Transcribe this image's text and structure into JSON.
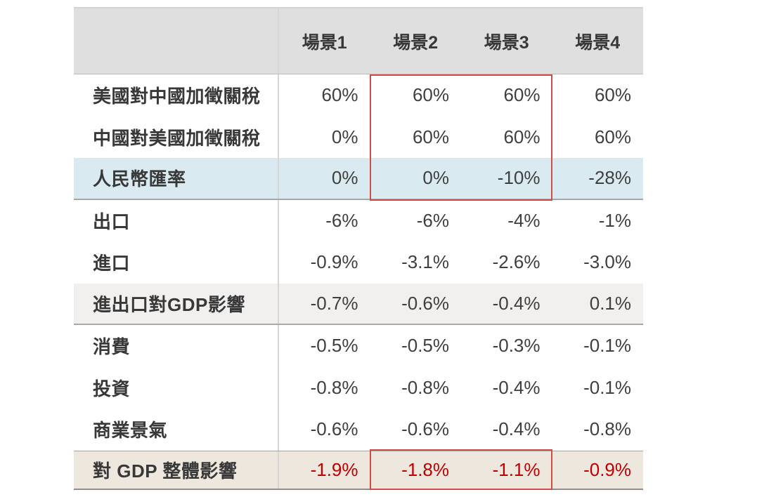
{
  "chart_data": {
    "type": "table",
    "columns": [
      "場景1",
      "場景2",
      "場景3",
      "場景4"
    ],
    "rows": [
      {
        "label": "美國對中國加徵關稅",
        "values": [
          "60%",
          "60%",
          "60%",
          "60%"
        ]
      },
      {
        "label": "中國對美國加徵關稅",
        "values": [
          "0%",
          "60%",
          "60%",
          "60%"
        ]
      },
      {
        "label": "人民幣匯率",
        "values": [
          "0%",
          "0%",
          "-10%",
          "-28%"
        ]
      },
      {
        "label": "出口",
        "values": [
          "-6%",
          "-6%",
          "-4%",
          "-1%"
        ]
      },
      {
        "label": "進口",
        "values": [
          "-0.9%",
          "-3.1%",
          "-2.6%",
          "-3.0%"
        ]
      },
      {
        "label": "進出口對GDP影響",
        "values": [
          "-0.7%",
          "-0.6%",
          "-0.4%",
          "0.1%"
        ]
      },
      {
        "label": "消費",
        "values": [
          "-0.5%",
          "-0.5%",
          "-0.3%",
          "-0.1%"
        ]
      },
      {
        "label": "投資",
        "values": [
          "-0.8%",
          "-0.8%",
          "-0.4%",
          "-0.1%"
        ]
      },
      {
        "label": "商業景氣",
        "values": [
          "-0.6%",
          "-0.6%",
          "-0.4%",
          "-0.8%"
        ]
      },
      {
        "label": "對 GDP 整體影響",
        "values": [
          "-1.9%",
          "-1.8%",
          "-1.1%",
          "-0.9%"
        ]
      }
    ],
    "highlighted_columns": [
      "場景2",
      "場景3"
    ],
    "layout_hints": {
      "highlight_box_top_rows": [
        "美國對中國加徵關稅",
        "中國對美國加徵關稅",
        "人民幣匯率"
      ],
      "highlight_box_bottom_rows": [
        "對 GDP 整體影響"
      ]
    },
    "colors": {
      "header_bg": "#e0dfdf",
      "exchange_rate_row_bg": "#d9eaf1",
      "gdp_trade_row_bg": "#f2f0ef",
      "total_row_bg": "#ede7de",
      "total_row_text": "#c00000",
      "highlight_border": "#cf4c48"
    }
  }
}
